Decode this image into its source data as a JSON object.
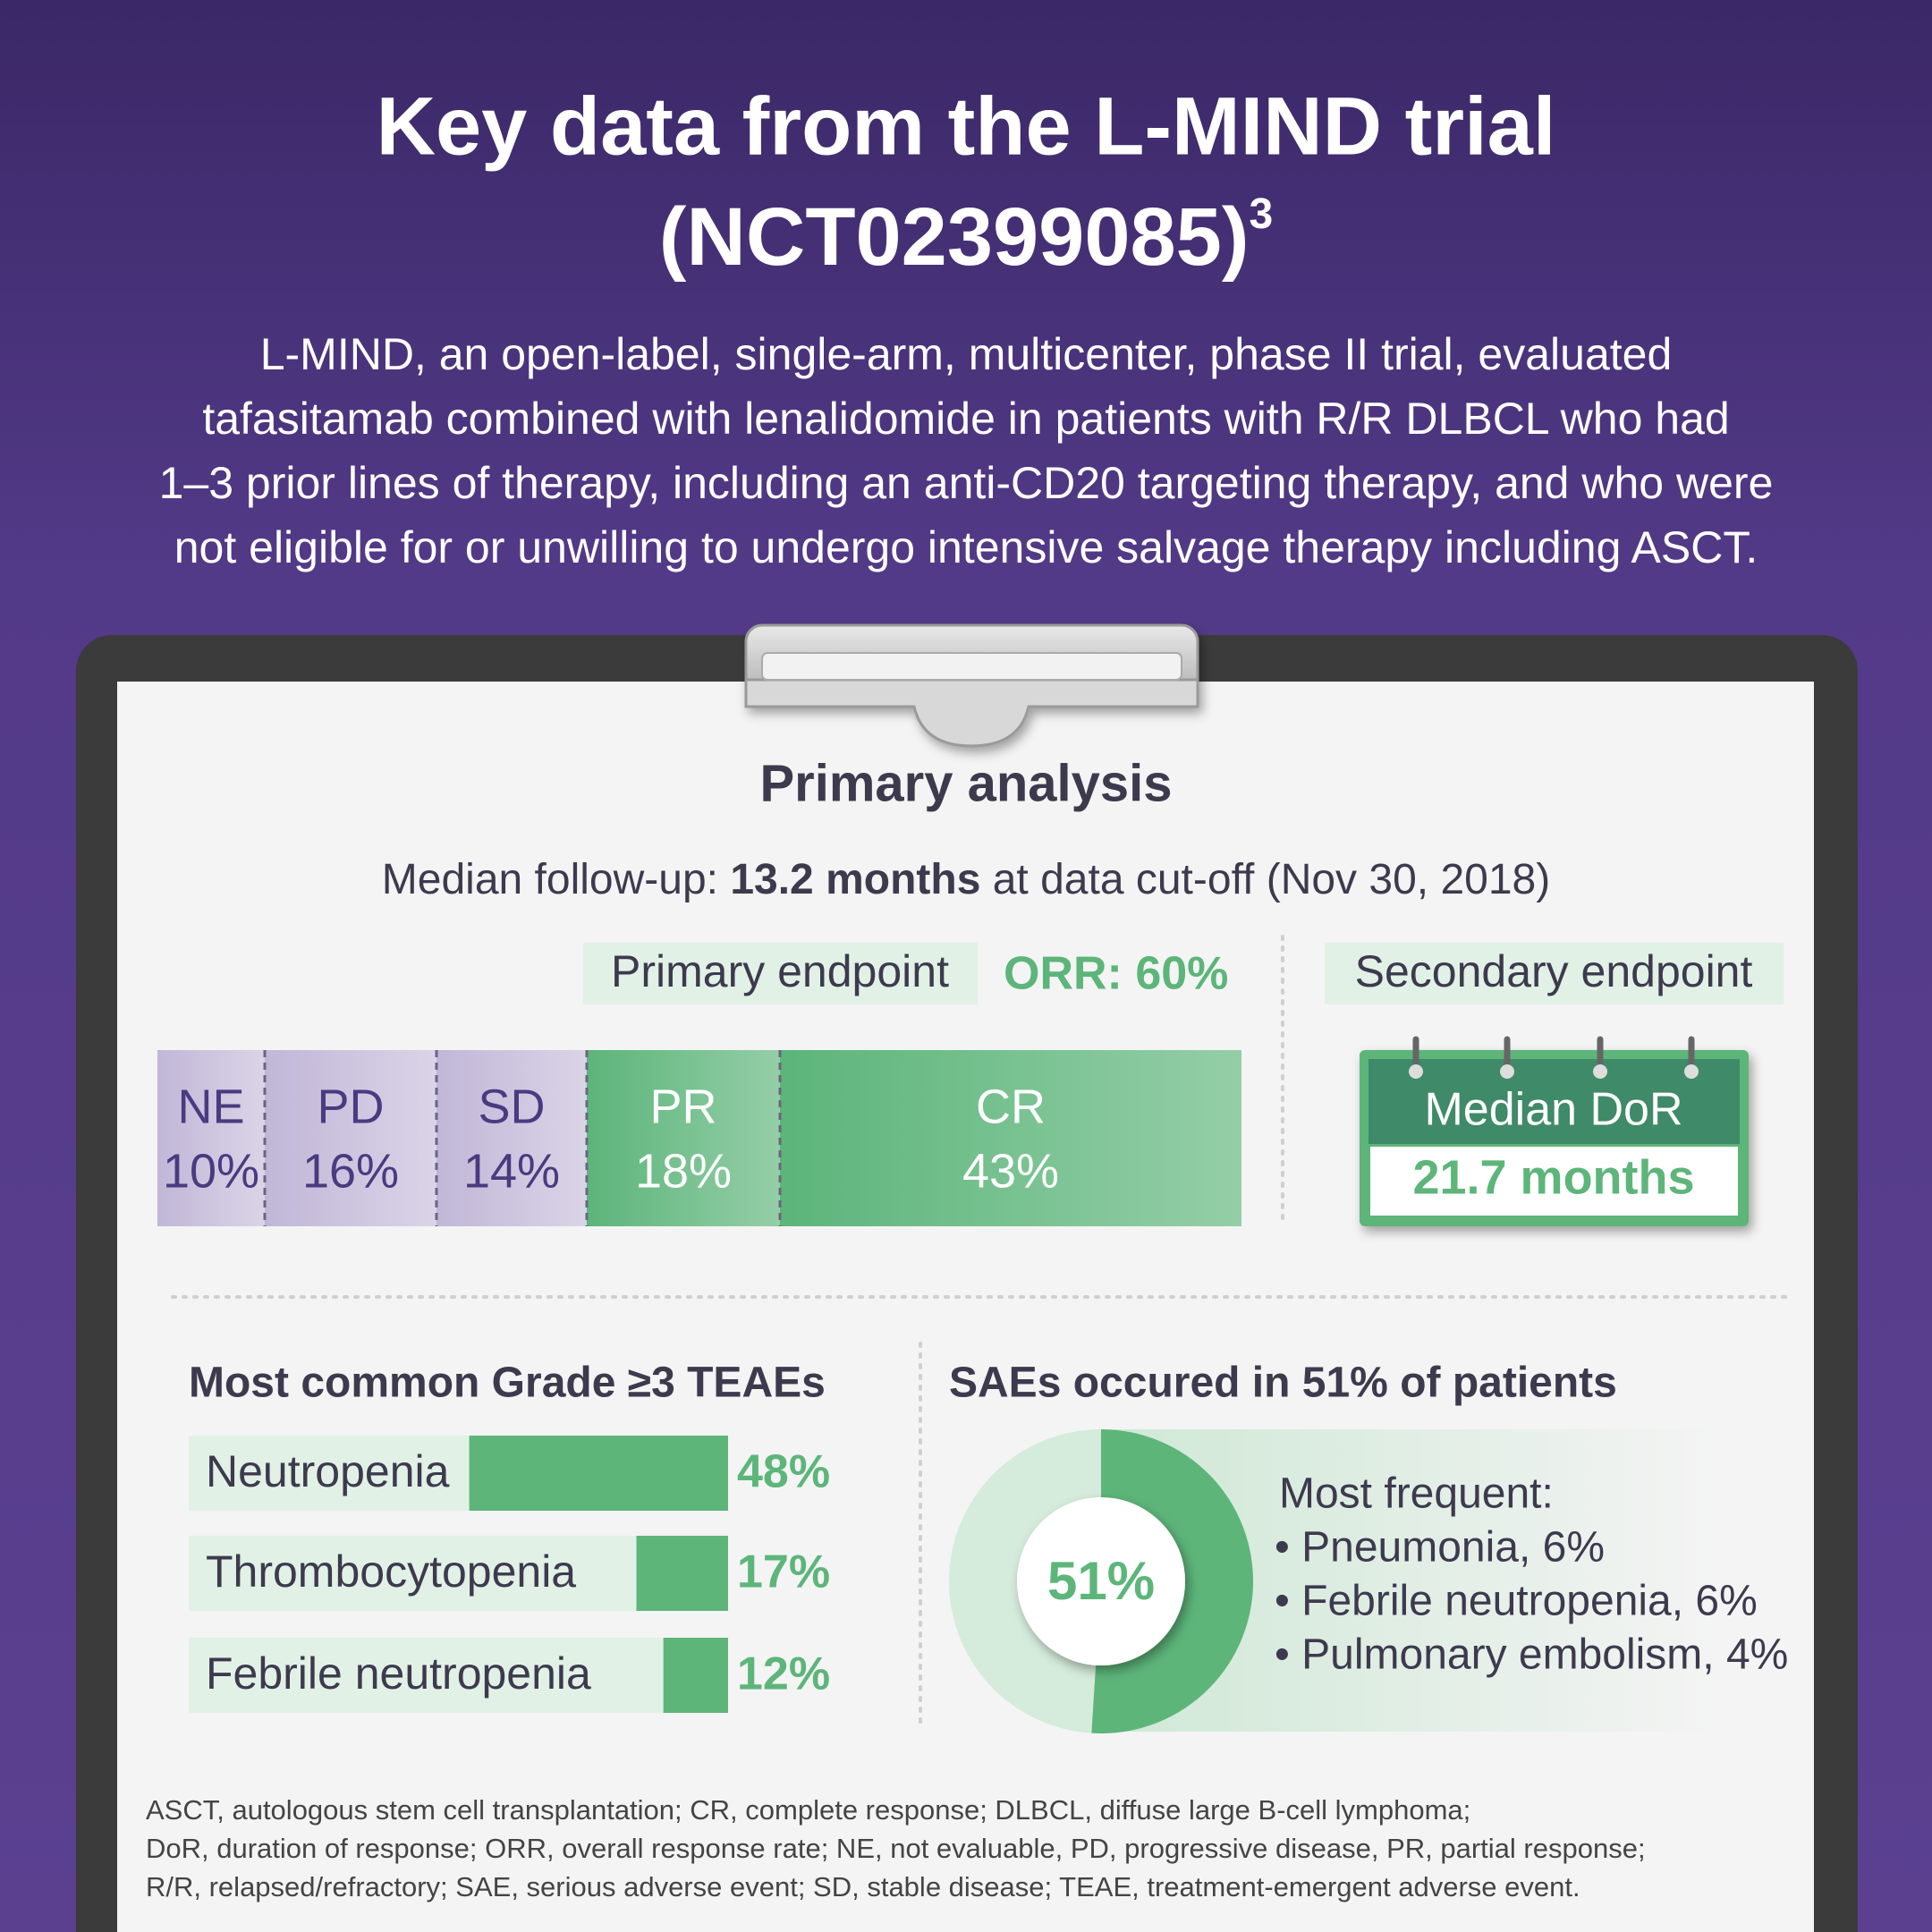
{
  "header": {
    "title_line1": "Key data from the L-MIND trial",
    "title_line2": "(NCT02399085)",
    "title_sup": "3",
    "intro": [
      "L-MIND, an open-label, single-arm, multicenter, phase II trial, evaluated",
      "tafasitamab combined with lenalidomide in patients with R/R DLBCL who had",
      "1–3 prior lines of therapy, including an anti-CD20 targeting therapy, and who were",
      "not eligible for or unwilling to undergo intensive salvage therapy including ASCT."
    ]
  },
  "panel": {
    "title": "Primary analysis",
    "followup_prefix": "Median follow-up: ",
    "followup_bold": "13.2 months",
    "followup_suffix": " at data cut-off (Nov 30, 2018)",
    "primary_endpoint": "Primary endpoint",
    "orr": "ORR: 60%",
    "secondary_endpoint": "Secondary endpoint",
    "dor_label": "Median DoR",
    "dor_value": "21.7 months"
  },
  "chart_data": [
    {
      "type": "stacked-bar",
      "categories": [
        "NE",
        "PD",
        "SD",
        "PR",
        "CR"
      ],
      "values": [
        10,
        16,
        14,
        18,
        43
      ],
      "value_labels": [
        "10%",
        "16%",
        "14%",
        "18%",
        "43%"
      ],
      "colors": [
        "#c7bddb",
        "#c7bddb",
        "#c7bddb",
        "#5db57a",
        "#5db57a"
      ]
    },
    {
      "type": "bar",
      "title": "Most common Grade ≥3 TEAEs",
      "categories": [
        "Neutropenia",
        "Thrombocytopenia",
        "Febrile neutropenia"
      ],
      "values": [
        48,
        17,
        12
      ],
      "value_labels": [
        "48%",
        "17%",
        "12%"
      ],
      "xlim": [
        0,
        100
      ],
      "color": "#5db57a"
    },
    {
      "type": "donut",
      "title": "SAEs occured in 51% of patients",
      "values": [
        51
      ],
      "value_labels": [
        "51%"
      ],
      "color": "#5db57a"
    }
  ],
  "sae_list": {
    "heading": "Most frequent:",
    "items": [
      "• Pneumonia, 6%",
      "• Febrile neutropenia, 6%",
      "• Pulmonary embolism, 4%"
    ]
  },
  "footnote": [
    "ASCT, autologous stem cell transplantation; CR, complete response; DLBCL, diffuse large B-cell lymphoma;",
    "DoR, duration of response; ORR, overall response rate; NE, not evaluable, PD, progressive disease, PR, partial response;",
    "R/R, relapsed/refractory; SAE, serious adverse event; SD, stable disease; TEAE, treatment-emergent adverse event."
  ]
}
